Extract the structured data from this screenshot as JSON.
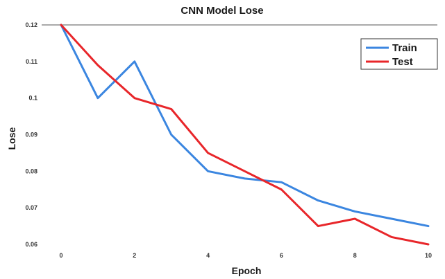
{
  "chart_data": {
    "type": "line",
    "title": "CNN Model Lose",
    "xlabel": "Epoch",
    "ylabel": "Lose",
    "x": [
      0,
      1,
      2,
      3,
      4,
      5,
      6,
      7,
      8,
      9,
      10
    ],
    "x_ticks": [
      "0",
      "2",
      "4",
      "6",
      "8",
      "10"
    ],
    "y_ticks": [
      "0.12",
      "0.11",
      "0.1",
      "0.09",
      "0.08",
      "0.07",
      "0.06"
    ],
    "xlim": [
      0,
      10
    ],
    "ylim": [
      0.06,
      0.12
    ],
    "grid": false,
    "legend_position": "top-right",
    "series": [
      {
        "name": "Train",
        "color": "#3b86e0",
        "values": [
          0.12,
          0.1,
          0.11,
          0.09,
          0.08,
          0.078,
          0.077,
          0.072,
          0.069,
          0.067,
          0.065
        ]
      },
      {
        "name": "Test",
        "color": "#e8262a",
        "values": [
          0.12,
          0.109,
          0.1,
          0.097,
          0.085,
          0.08,
          0.075,
          0.065,
          0.067,
          0.062,
          0.06
        ]
      }
    ]
  }
}
